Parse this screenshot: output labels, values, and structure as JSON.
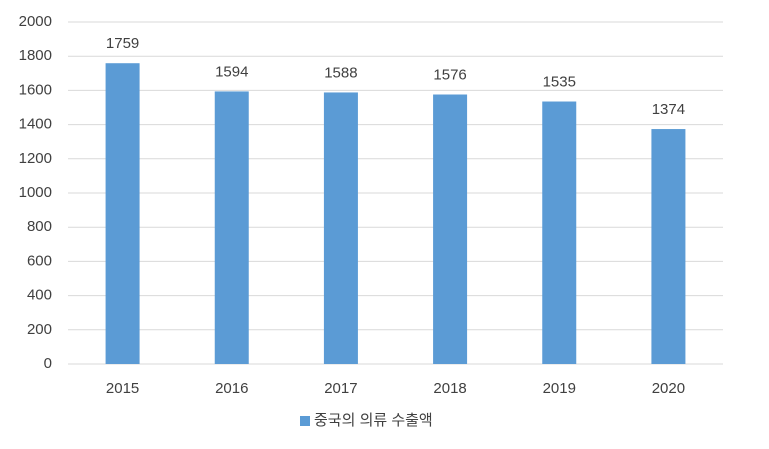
{
  "chart_data": {
    "type": "bar",
    "categories": [
      "2015",
      "2016",
      "2017",
      "2018",
      "2019",
      "2020"
    ],
    "series": [
      {
        "name": "중국의 의류 수출액",
        "color": "#5b9bd5",
        "values": [
          1759,
          1594,
          1588,
          1576,
          1535,
          1374
        ]
      }
    ],
    "ylim": [
      0,
      2000
    ],
    "yticks": [
      0,
      200,
      400,
      600,
      800,
      1000,
      1200,
      1400,
      1600,
      1800,
      2000
    ],
    "grid": true,
    "data_labels": true,
    "legend": "bottom"
  }
}
